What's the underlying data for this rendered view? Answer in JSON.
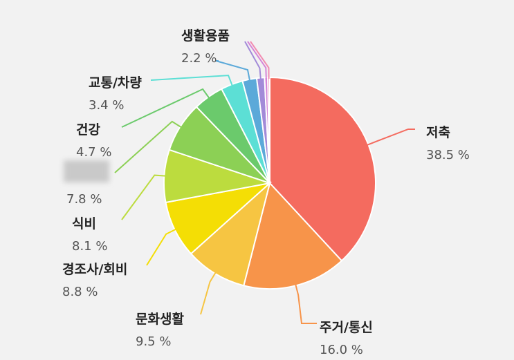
{
  "chart_data": {
    "type": "pie",
    "title": "",
    "slices": [
      {
        "label": "저축",
        "value_text": "38.5 %",
        "value": 38.5,
        "color": "#f46b5f"
      },
      {
        "label": "주거/통신",
        "value_text": "16.0 %",
        "value": 16.0,
        "color": "#f7944a"
      },
      {
        "label": "문화생활",
        "value_text": "9.5 %",
        "value": 9.5,
        "color": "#f6c542"
      },
      {
        "label": "경조사/회비",
        "value_text": "8.8 %",
        "value": 8.8,
        "color": "#f4de05"
      },
      {
        "label": "식비",
        "value_text": "8.1 %",
        "value": 8.1,
        "color": "#bcdc3e"
      },
      {
        "label": "",
        "value_text": "7.8 %",
        "value": 7.8,
        "color": "#8cd055",
        "label_obscured": true
      },
      {
        "label": "건강",
        "value_text": "4.7 %",
        "value": 4.7,
        "color": "#6bca6c"
      },
      {
        "label": "교통/차량",
        "value_text": "3.4 %",
        "value": 3.4,
        "color": "#5cdfd5"
      },
      {
        "label": "생활용품",
        "value_text": "2.2 %",
        "value": 2.2,
        "color": "#5ba9d9"
      },
      {
        "label": "",
        "value_text": "",
        "value": 1.2,
        "color": "#a28ad8"
      },
      {
        "label": "",
        "value_text": "",
        "value": 0.5,
        "color": "#d585d8"
      },
      {
        "label": "",
        "value_text": "",
        "value": 0.3,
        "color": "#f28cb1"
      }
    ]
  }
}
